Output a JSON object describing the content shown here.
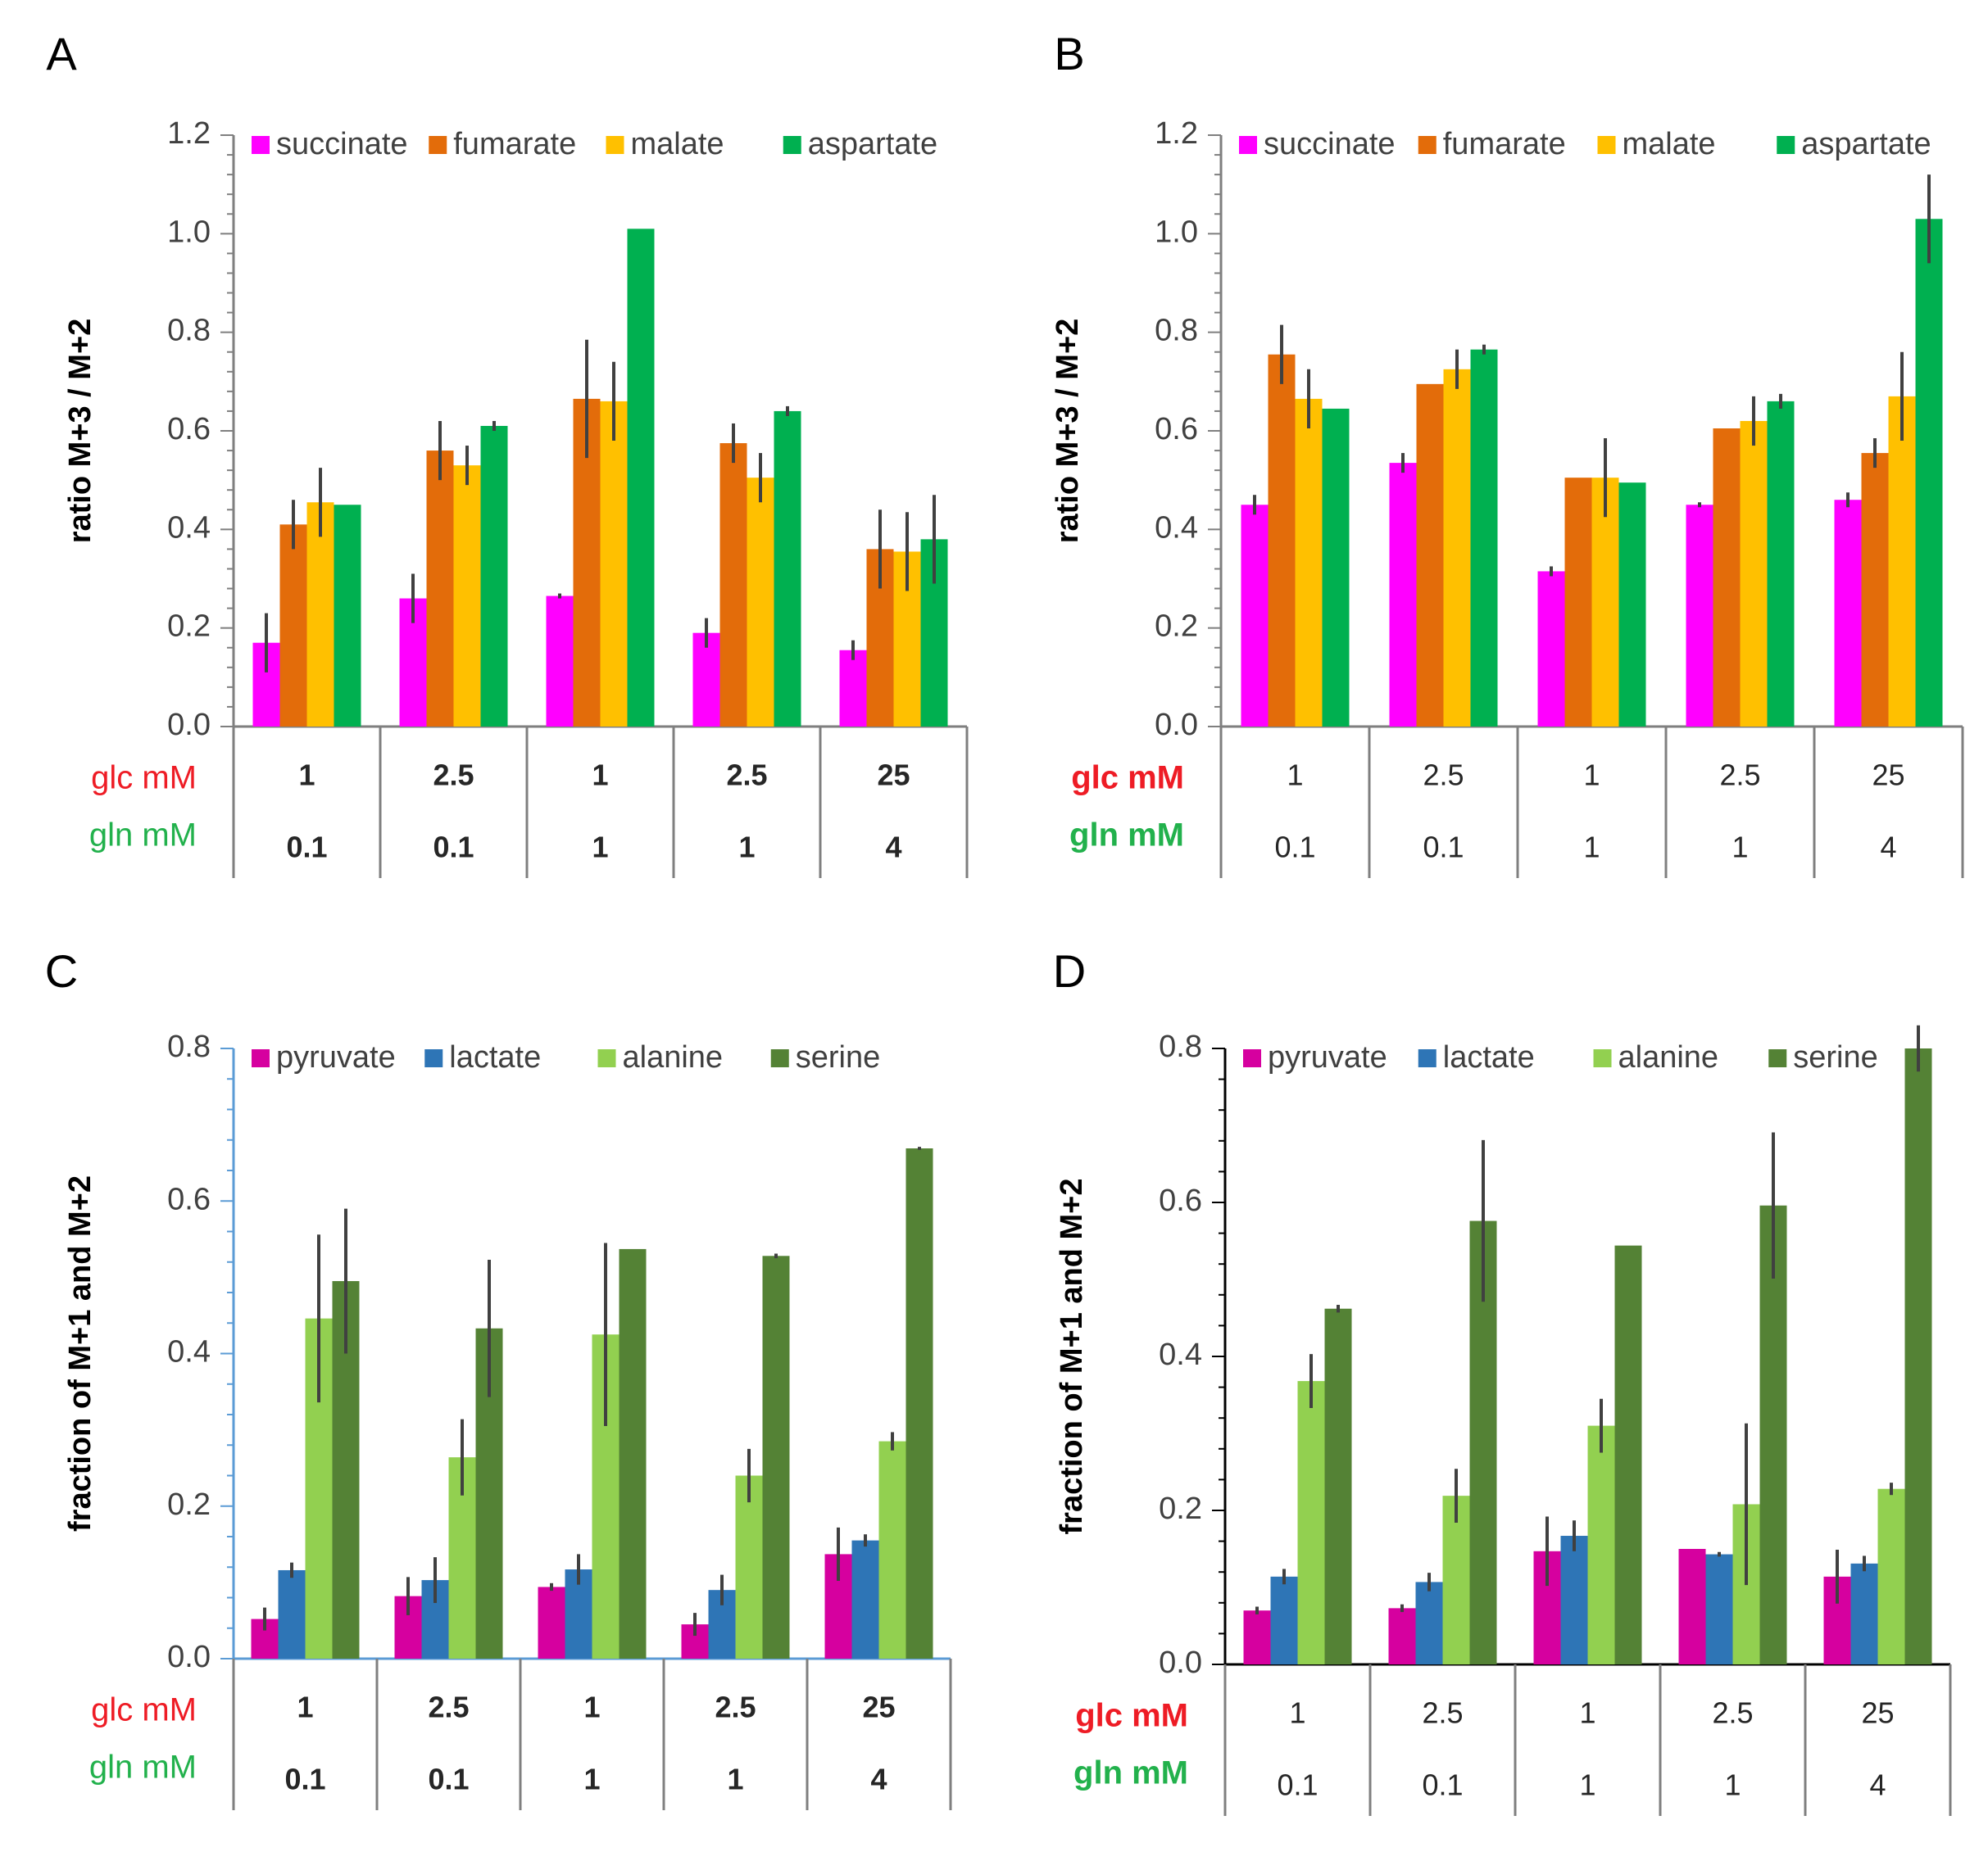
{
  "figure": {
    "colors": {
      "glc": "#ee1c25",
      "gln": "#22b14c",
      "axis": "#7f7f7f",
      "error": "#404040"
    }
  },
  "chart_data": [
    {
      "panel": "A",
      "type": "bar",
      "ylabel": "ratio M+3 / M+2",
      "ylim": [
        0,
        1.2
      ],
      "ymajor": 0.2,
      "ytick_labels": [
        "0.0",
        "0.2",
        "0.4",
        "0.6",
        "0.8",
        "1.0",
        "1.2"
      ],
      "legend_position": "top",
      "row_labels": [
        "glc mM",
        "gln mM"
      ],
      "categories_glc": [
        "1",
        "2.5",
        "1",
        "2.5",
        "25"
      ],
      "categories_gln": [
        "0.1",
        "0.1",
        "1",
        "1",
        "4"
      ],
      "series": [
        {
          "name": "succinate",
          "color": "#ff00ff",
          "values": [
            0.17,
            0.26,
            0.265,
            0.19,
            0.155
          ],
          "errors": [
            0.06,
            0.05,
            0.005,
            0.03,
            0.02
          ]
        },
        {
          "name": "fumarate",
          "color": "#e36c0a",
          "values": [
            0.41,
            0.56,
            0.665,
            0.575,
            0.36
          ],
          "errors": [
            0.05,
            0.06,
            0.12,
            0.04,
            0.08
          ]
        },
        {
          "name": "malate",
          "color": "#ffc000",
          "values": [
            0.455,
            0.53,
            0.66,
            0.505,
            0.355
          ],
          "errors": [
            0.07,
            0.04,
            0.08,
            0.05,
            0.08
          ]
        },
        {
          "name": "aspartate",
          "color": "#00b050",
          "values": [
            0.45,
            0.61,
            1.01,
            0.64,
            0.38
          ],
          "errors": [
            0,
            0.01,
            0,
            0.01,
            0.09
          ]
        }
      ]
    },
    {
      "panel": "B",
      "type": "bar",
      "ylabel": "ratio M+3 / M+2",
      "ylim": [
        0,
        1.2
      ],
      "ymajor": 0.2,
      "ytick_labels": [
        "0.0",
        "0.2",
        "0.4",
        "0.6",
        "0.8",
        "1.0",
        "1.2"
      ],
      "legend_position": "top",
      "row_labels": [
        "glc mM",
        "gln mM"
      ],
      "categories_glc": [
        "1",
        "2.5",
        "1",
        "2.5",
        "25"
      ],
      "categories_gln": [
        "0.1",
        "0.1",
        "1",
        "1",
        "4"
      ],
      "series": [
        {
          "name": "succinate",
          "color": "#ff00ff",
          "values": [
            0.45,
            0.535,
            0.315,
            0.45,
            0.46
          ],
          "errors": [
            0.02,
            0.02,
            0.01,
            0.005,
            0.015
          ]
        },
        {
          "name": "fumarate",
          "color": "#e36c0a",
          "values": [
            0.755,
            0.695,
            0.505,
            0.605,
            0.555
          ],
          "errors": [
            0.06,
            0,
            0,
            0,
            0.03
          ]
        },
        {
          "name": "malate",
          "color": "#ffc000",
          "values": [
            0.665,
            0.725,
            0.505,
            0.62,
            0.67
          ],
          "errors": [
            0.06,
            0.04,
            0.08,
            0.05,
            0.09
          ]
        },
        {
          "name": "aspartate",
          "color": "#00b050",
          "values": [
            0.645,
            0.765,
            0.495,
            0.66,
            1.03
          ],
          "errors": [
            0,
            0.01,
            0,
            0.015,
            0.09
          ]
        }
      ]
    },
    {
      "panel": "C",
      "type": "bar",
      "ylabel": "fraction of M+1 and M+2",
      "ylim": [
        0,
        0.8
      ],
      "ymajor": 0.2,
      "ytick_labels": [
        "0.0",
        "0.2",
        "0.4",
        "0.6",
        "0.8"
      ],
      "legend_position": "top",
      "row_labels": [
        "glc mM",
        "gln mM"
      ],
      "categories_glc": [
        "1",
        "2.5",
        "1",
        "2.5",
        "25"
      ],
      "categories_gln": [
        "0.1",
        "0.1",
        "1",
        "1",
        "4"
      ],
      "series": [
        {
          "name": "pyruvate",
          "color": "#d6009f",
          "values": [
            0.052,
            0.082,
            0.094,
            0.045,
            0.137
          ],
          "errors": [
            0.015,
            0.025,
            0.005,
            0.015,
            0.035
          ]
        },
        {
          "name": "lactate",
          "color": "#2e75b6",
          "values": [
            0.116,
            0.103,
            0.117,
            0.09,
            0.155
          ],
          "errors": [
            0.01,
            0.03,
            0.02,
            0.02,
            0.008
          ]
        },
        {
          "name": "alanine",
          "color": "#92d050",
          "values": [
            0.446,
            0.264,
            0.425,
            0.24,
            0.285
          ],
          "errors": [
            0.11,
            0.05,
            0.12,
            0.035,
            0.012
          ]
        },
        {
          "name": "serine",
          "color": "#548235",
          "values": [
            0.495,
            0.433,
            0.537,
            0.528,
            0.669
          ],
          "errors": [
            0.095,
            0.09,
            0,
            0.003,
            0.002
          ]
        }
      ]
    },
    {
      "panel": "D",
      "type": "bar",
      "ylabel": "fraction of M+1 and M+2",
      "ylim": [
        0,
        0.8
      ],
      "ymajor": 0.2,
      "ytick_labels": [
        "0.0",
        "0.2",
        "0.4",
        "0.6",
        "0.8"
      ],
      "legend_position": "top",
      "row_labels": [
        "glc mM",
        "gln mM"
      ],
      "categories_glc": [
        "1",
        "2.5",
        "1",
        "2.5",
        "25"
      ],
      "categories_gln": [
        "0.1",
        "0.1",
        "1",
        "1",
        "4"
      ],
      "series": [
        {
          "name": "pyruvate",
          "color": "#d6009f",
          "values": [
            0.07,
            0.073,
            0.147,
            0.15,
            0.114
          ],
          "errors": [
            0.005,
            0.005,
            0.045,
            0,
            0.035
          ]
        },
        {
          "name": "lactate",
          "color": "#2e75b6",
          "values": [
            0.114,
            0.107,
            0.167,
            0.143,
            0.131
          ],
          "errors": [
            0.01,
            0.012,
            0.02,
            0.003,
            0.01
          ]
        },
        {
          "name": "alanine",
          "color": "#92d050",
          "values": [
            0.368,
            0.219,
            0.31,
            0.208,
            0.228
          ],
          "errors": [
            0.035,
            0.035,
            0.035,
            0.105,
            0.008
          ]
        },
        {
          "name": "serine",
          "color": "#548235",
          "values": [
            0.462,
            0.576,
            0.544,
            0.596,
            0.8
          ],
          "errors": [
            0.005,
            0.105,
            0,
            0.095,
            0.03
          ]
        }
      ]
    }
  ]
}
